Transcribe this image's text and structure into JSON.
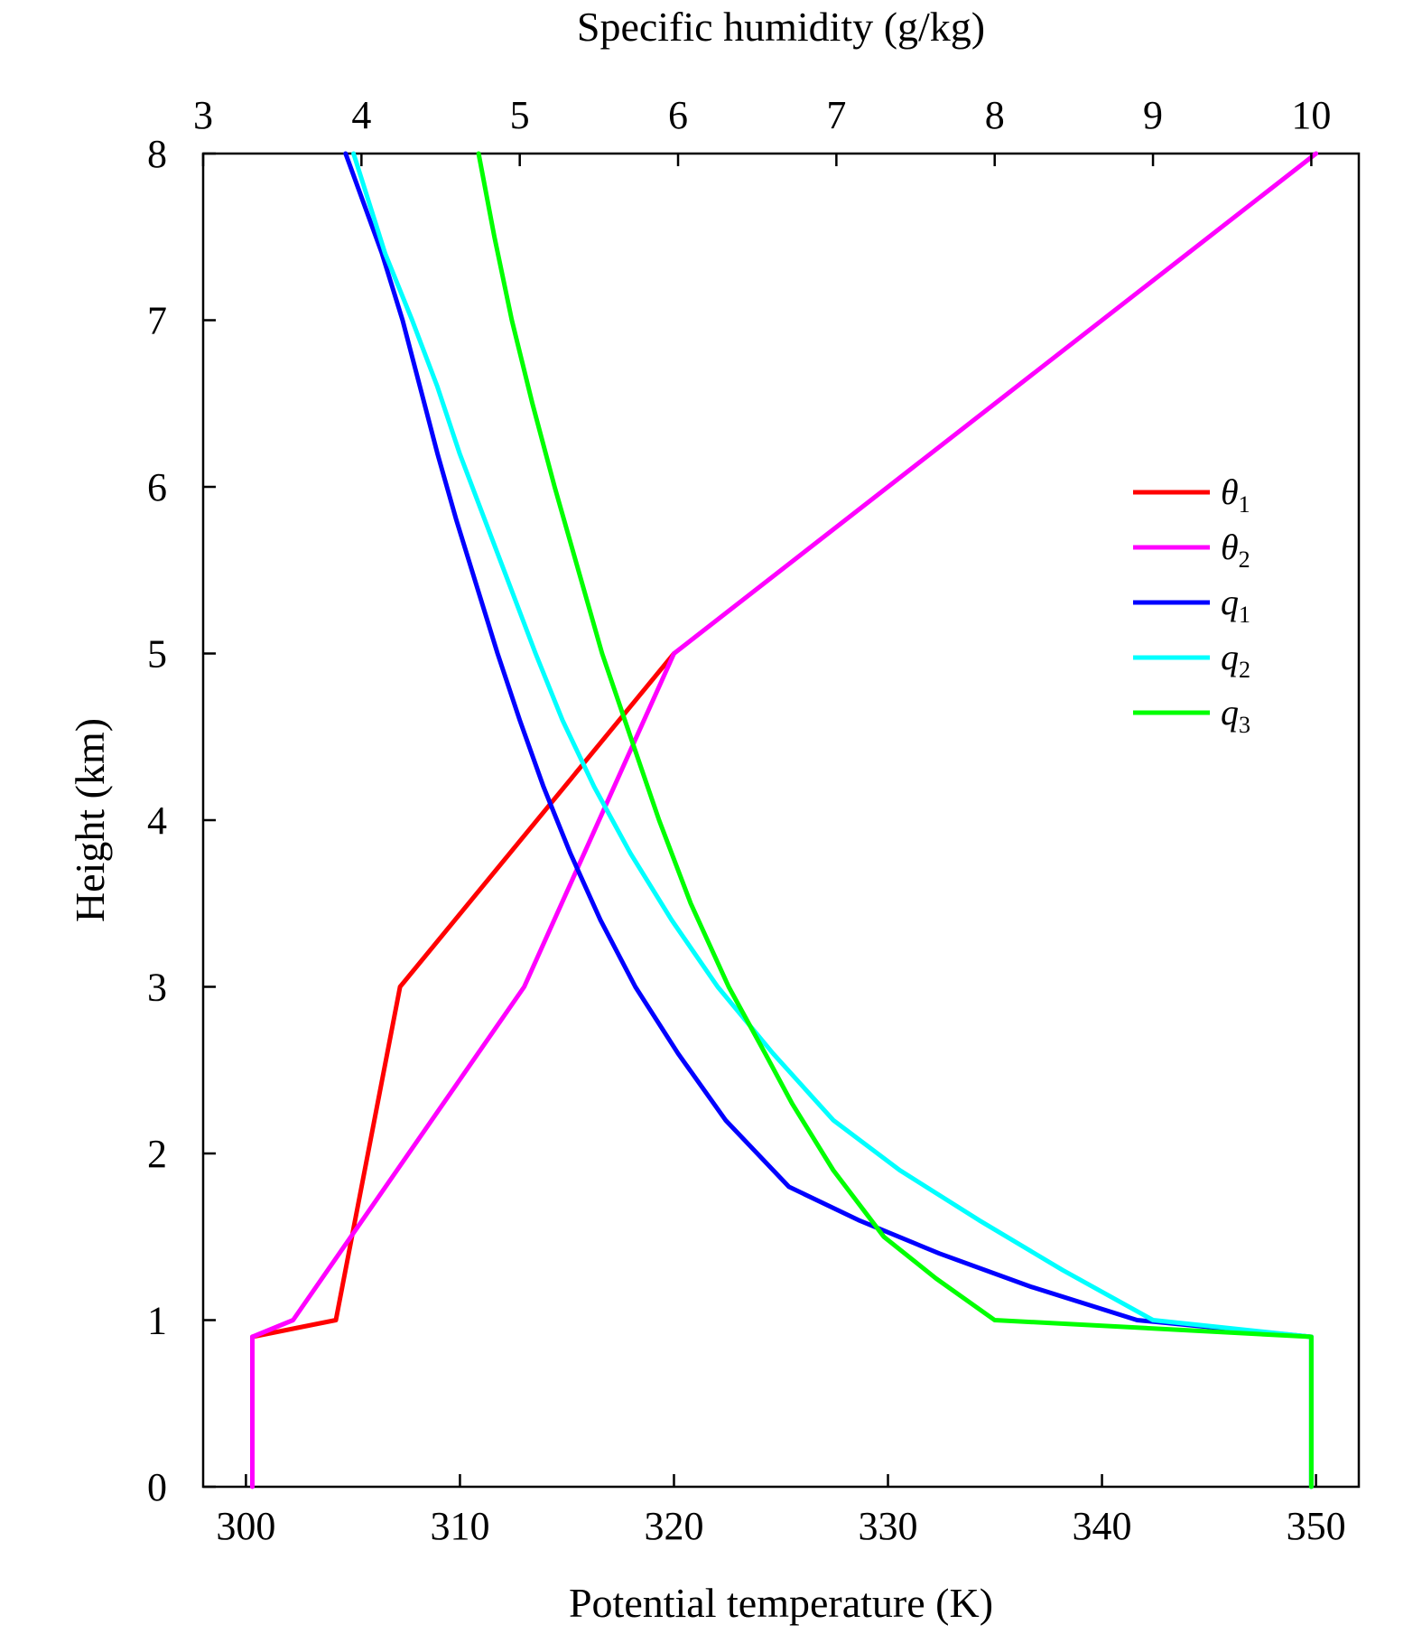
{
  "chart_data": {
    "type": "line",
    "top_xlabel": "Specific humidity (g/kg)",
    "bottom_xlabel": "Potential temperature (K)",
    "ylabel": "Height (km)",
    "x_bottom_range": [
      298,
      352
    ],
    "x_top_range": [
      3,
      10.3
    ],
    "ylim": [
      0,
      8
    ],
    "bottom_ticks": [
      "300",
      "310",
      "320",
      "330",
      "340",
      "350"
    ],
    "top_ticks": [
      "3",
      "4",
      "5",
      "6",
      "7",
      "8",
      "9",
      "10"
    ],
    "y_ticks": [
      "0",
      "1",
      "2",
      "3",
      "4",
      "5",
      "6",
      "7",
      "8"
    ],
    "grid": false,
    "legend_position": "right",
    "series": [
      {
        "name": "θ1",
        "symbol": "θ",
        "sub": "1",
        "axis": "bottom",
        "color": "#ff0000",
        "points": [
          [
            300.3,
            0.9
          ],
          [
            304.2,
            1.0
          ],
          [
            307.2,
            3.0
          ],
          [
            320.0,
            5.0
          ]
        ]
      },
      {
        "name": "θ2",
        "symbol": "θ",
        "sub": "2",
        "axis": "bottom",
        "color": "#ff00ff",
        "points": [
          [
            300.3,
            0.0
          ],
          [
            300.3,
            0.9
          ],
          [
            302.2,
            1.0
          ],
          [
            313.0,
            3.0
          ],
          [
            320.0,
            5.0
          ],
          [
            350.0,
            8.0
          ]
        ]
      },
      {
        "name": "q1",
        "symbol": "q",
        "sub": "1",
        "axis": "top",
        "color": "#0000ff",
        "points": [
          [
            10.0,
            0.0
          ],
          [
            10.0,
            0.9
          ],
          [
            8.9,
            1.0
          ],
          [
            8.23,
            1.2
          ],
          [
            7.65,
            1.4
          ],
          [
            7.14,
            1.6
          ],
          [
            6.7,
            1.8
          ],
          [
            6.3,
            2.2
          ],
          [
            6.0,
            2.6
          ],
          [
            5.73,
            3.0
          ],
          [
            5.51,
            3.4
          ],
          [
            5.32,
            3.8
          ],
          [
            5.15,
            4.2
          ],
          [
            5.0,
            4.6
          ],
          [
            4.86,
            5.0
          ],
          [
            4.73,
            5.4
          ],
          [
            4.6,
            5.8
          ],
          [
            4.48,
            6.2
          ],
          [
            4.37,
            6.6
          ],
          [
            4.26,
            7.0
          ],
          [
            4.13,
            7.4
          ],
          [
            3.9,
            8.0
          ]
        ]
      },
      {
        "name": "q2",
        "symbol": "q",
        "sub": "2",
        "axis": "top",
        "color": "#00ffff",
        "points": [
          [
            10.0,
            0.0
          ],
          [
            10.0,
            0.9
          ],
          [
            9.0,
            1.0
          ],
          [
            8.43,
            1.3
          ],
          [
            7.9,
            1.6
          ],
          [
            7.4,
            1.9
          ],
          [
            6.98,
            2.2
          ],
          [
            6.6,
            2.6
          ],
          [
            6.25,
            3.0
          ],
          [
            5.96,
            3.4
          ],
          [
            5.7,
            3.8
          ],
          [
            5.47,
            4.2
          ],
          [
            5.27,
            4.6
          ],
          [
            5.1,
            5.0
          ],
          [
            4.94,
            5.4
          ],
          [
            4.78,
            5.8
          ],
          [
            4.62,
            6.2
          ],
          [
            4.48,
            6.6
          ],
          [
            4.32,
            7.0
          ],
          [
            4.15,
            7.4
          ],
          [
            3.95,
            8.0
          ]
        ]
      },
      {
        "name": "q3",
        "symbol": "q",
        "sub": "3",
        "axis": "top",
        "color": "#00ff00",
        "points": [
          [
            10.0,
            0.0
          ],
          [
            10.0,
            0.9
          ],
          [
            8.0,
            1.0
          ],
          [
            7.63,
            1.25
          ],
          [
            7.3,
            1.5
          ],
          [
            6.98,
            1.9
          ],
          [
            6.72,
            2.3
          ],
          [
            6.55,
            2.6
          ],
          [
            6.32,
            3.0
          ],
          [
            6.08,
            3.5
          ],
          [
            5.88,
            4.0
          ],
          [
            5.7,
            4.5
          ],
          [
            5.52,
            5.0
          ],
          [
            5.37,
            5.5
          ],
          [
            5.22,
            6.0
          ],
          [
            5.08,
            6.5
          ],
          [
            4.95,
            7.0
          ],
          [
            4.84,
            7.5
          ],
          [
            4.74,
            8.0
          ]
        ]
      }
    ]
  }
}
